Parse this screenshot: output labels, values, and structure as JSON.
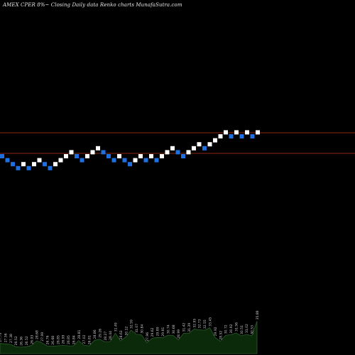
{
  "title": "AMEX  CPER 8%~  Closing Daily data  Renko  charts MunafaSutra.com",
  "colors": {
    "background": "#000000",
    "up_brick": "#ffffff",
    "down_brick": "#1e6fe0",
    "reference_line": "#8b2a10",
    "volume_fill": "#0a2a0a",
    "volume_stroke": "#2e5a2e",
    "volume_label": "#cccccc"
  },
  "chart_data": {
    "type": "renko",
    "brick_directions": [
      "down",
      "down",
      "down",
      "down",
      "up",
      "down",
      "up",
      "up",
      "down",
      "down",
      "up",
      "up",
      "up",
      "up",
      "down",
      "down",
      "up",
      "up",
      "up",
      "down",
      "down",
      "down",
      "up",
      "down",
      "down",
      "up",
      "up",
      "down",
      "up",
      "down",
      "up",
      "up",
      "up",
      "down",
      "down",
      "up",
      "up",
      "up",
      "down",
      "up",
      "up",
      "up",
      "up",
      "down",
      "up",
      "down",
      "up",
      "down",
      "up"
    ],
    "reference_lines_price": [
      25.1,
      23.9
    ],
    "volume_labels": [
      "27.73",
      "27.56",
      "27.38",
      "26.52",
      "26.36",
      "26.52",
      "26.93",
      "28.68",
      "27.99",
      "26.76",
      "26.68",
      "26.85",
      "26.99",
      "26.85",
      "26.84",
      "28.81",
      "27.02",
      "26.81",
      "28.86",
      "29.26",
      "28.27",
      "28.44",
      "31.49",
      "28.63",
      "30.12",
      "32.59",
      "31.07",
      "30.84",
      "27.96",
      "29.62",
      "29.89",
      "29.81",
      "30.74",
      "30.68",
      "28.99",
      "31.42",
      "31.39",
      "32.95",
      "32.73",
      "32.55",
      "33.45",
      "29.92",
      "28.52",
      "30.72",
      "30.92",
      "31.56",
      "30.51",
      "31.02",
      "30.53",
      "35.88"
    ]
  }
}
